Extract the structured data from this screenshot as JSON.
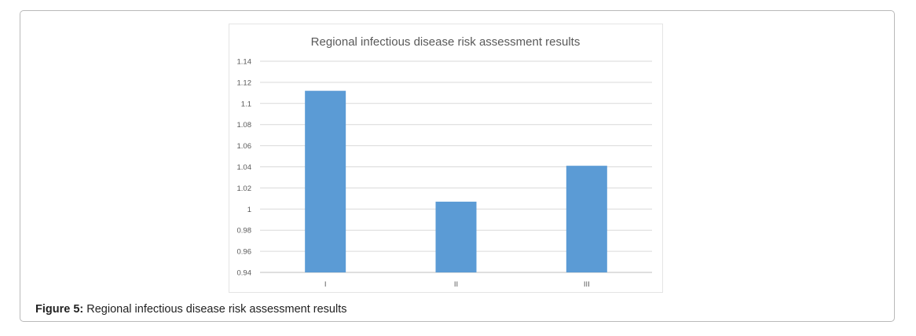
{
  "figure": {
    "label": "Figure 5:",
    "text": " Regional infectious disease risk assessment results"
  },
  "chart_data": {
    "type": "bar",
    "title": "Regional infectious disease risk assessment results",
    "categories": [
      "I",
      "II",
      "III"
    ],
    "values": [
      1.112,
      1.007,
      1.041
    ],
    "ylim": [
      0.94,
      1.14
    ],
    "yticks": [
      "1.14",
      "1.12",
      "1.1",
      "1.08",
      "1.06",
      "1.04",
      "1.02",
      "1",
      "0.98",
      "0.96",
      "0.94"
    ],
    "xlabel": "",
    "ylabel": "",
    "grid": true,
    "legend": "none",
    "bar_color": "#5b9bd5",
    "grid_color": "#d9d9d9"
  }
}
